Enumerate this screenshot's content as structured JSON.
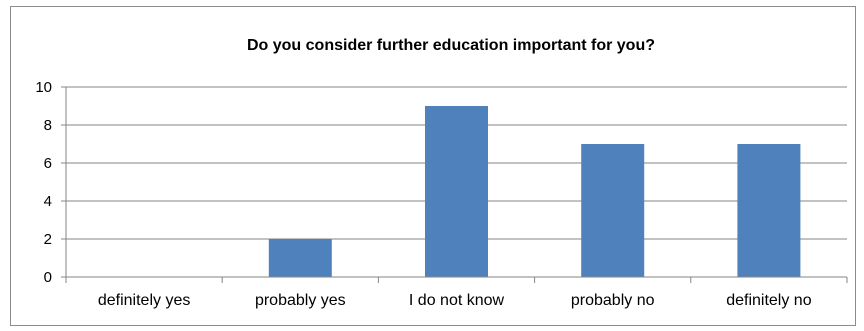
{
  "chart_data": {
    "type": "bar",
    "title": "Do you consider further education important for you?",
    "categories": [
      "definitely yes",
      "probably yes",
      "I do not know",
      "probably no",
      "definitely no"
    ],
    "values": [
      0,
      2,
      9,
      7,
      7
    ],
    "ylim": [
      0,
      10
    ],
    "yticks": [
      0,
      2,
      4,
      6,
      8,
      10
    ],
    "xlabel": "",
    "ylabel": "",
    "grid": true,
    "legend": "none",
    "colors": {
      "bar": "#4f81bd",
      "grid": "#868686",
      "axis": "#868686"
    }
  }
}
